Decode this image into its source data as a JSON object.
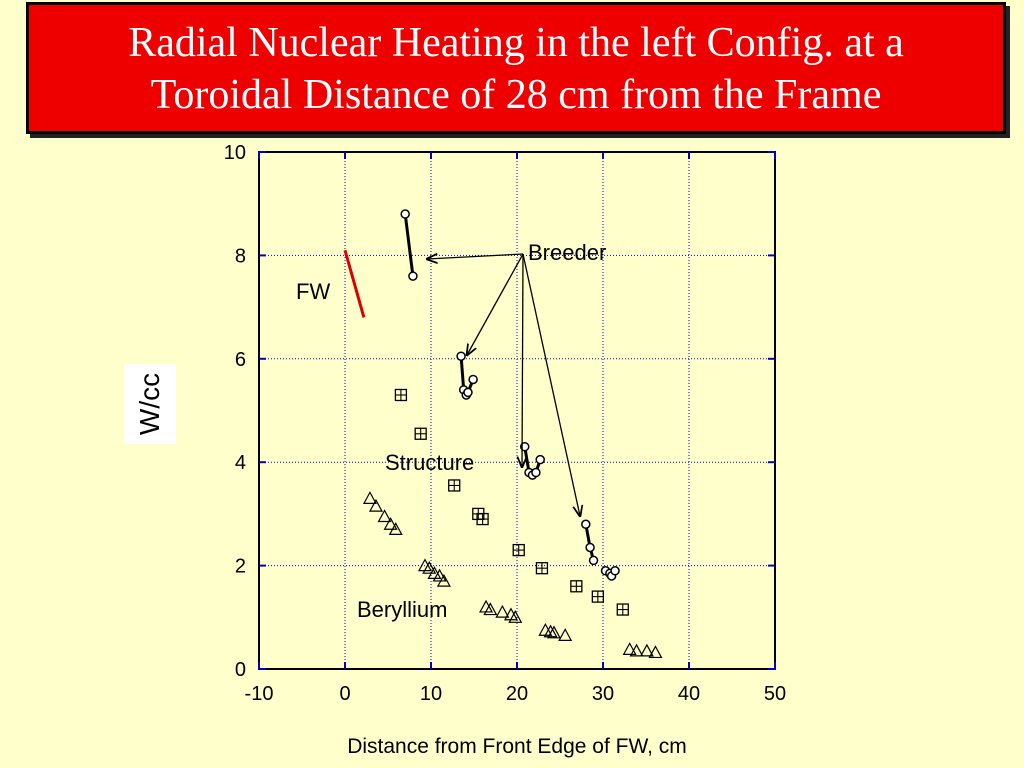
{
  "title": {
    "line1": "Radial Nuclear Heating in the left Config. at a",
    "line2": "Toroidal Distance of 28 cm from the Frame"
  },
  "chart_data": {
    "type": "scatter",
    "xlabel": "Distance from Front Edge of FW, cm",
    "ylabel": "W/cc",
    "xlim": [
      -10,
      50
    ],
    "ylim": [
      0,
      10
    ],
    "xticks": [
      "-10",
      "0",
      "10",
      "20",
      "30",
      "40",
      "50"
    ],
    "yticks": [
      "0",
      "2",
      "4",
      "6",
      "8",
      "10"
    ],
    "grid": true,
    "annotations": [
      "Breeder",
      "FW",
      "Structure",
      "Beryllium"
    ],
    "series": [
      {
        "name": "FW",
        "style": "red line",
        "x": [
          0.0,
          2.2
        ],
        "y": [
          8.1,
          6.8
        ]
      },
      {
        "name": "Breeder",
        "style": "circle markers with black lines",
        "segments": [
          {
            "x": [
              7.0,
              7.9
            ],
            "y": [
              8.8,
              7.6
            ]
          },
          {
            "x": [
              13.5,
              13.8,
              14.1,
              14.3,
              14.9
            ],
            "y": [
              6.05,
              5.4,
              5.3,
              5.35,
              5.6
            ]
          },
          {
            "x": [
              20.9,
              21.4,
              21.8,
              22.2,
              22.7
            ],
            "y": [
              4.3,
              3.8,
              3.75,
              3.8,
              4.05
            ]
          },
          {
            "x": [
              28.0,
              28.5,
              28.9
            ],
            "y": [
              2.8,
              2.35,
              2.1
            ]
          },
          {
            "x": [
              30.3,
              30.8,
              31.0,
              31.4
            ],
            "y": [
              1.9,
              1.85,
              1.8,
              1.9
            ]
          }
        ]
      },
      {
        "name": "Structure",
        "style": "boxed-plus markers",
        "x": [
          6.5,
          8.8,
          12.7,
          15.5,
          16.0,
          20.2,
          22.9,
          26.9,
          29.4,
          32.3
        ],
        "y": [
          5.3,
          4.55,
          3.55,
          3.0,
          2.9,
          2.3,
          1.95,
          1.6,
          1.4,
          1.15
        ]
      },
      {
        "name": "Beryllium",
        "style": "open triangle markers",
        "x": [
          2.9,
          3.6,
          4.6,
          5.3,
          5.9,
          9.3,
          9.8,
          10.4,
          11.0,
          11.5,
          16.4,
          16.9,
          18.3,
          19.3,
          19.8,
          23.3,
          23.9,
          24.3,
          25.6,
          33.1,
          33.9,
          35.1,
          36.1
        ],
        "y": [
          3.3,
          3.15,
          2.95,
          2.8,
          2.7,
          2.0,
          1.95,
          1.85,
          1.8,
          1.7,
          1.2,
          1.15,
          1.1,
          1.05,
          1.0,
          0.75,
          0.72,
          0.7,
          0.65,
          0.38,
          0.35,
          0.35,
          0.32
        ]
      }
    ]
  }
}
